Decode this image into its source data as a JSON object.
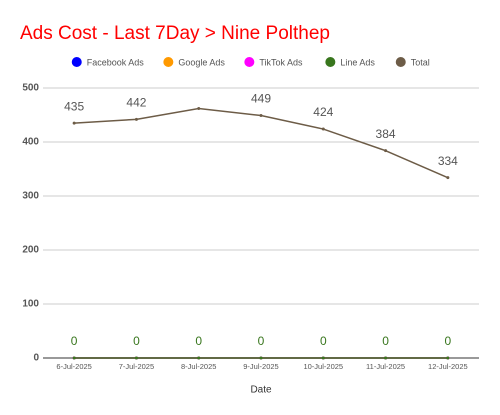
{
  "chart_data": {
    "type": "line",
    "title": "Ads Cost - Last 7Day > Nine Polthep",
    "x_label": "Date",
    "categories": [
      "6-Jul-2025",
      "7-Jul-2025",
      "8-Jul-2025",
      "9-Jul-2025",
      "10-Jul-2025",
      "11-Jul-2025",
      "12-Jul-2025"
    ],
    "series": [
      {
        "name": "Facebook Ads",
        "color": "#0000ff",
        "values": [
          0,
          0,
          0,
          0,
          0,
          0,
          0
        ]
      },
      {
        "name": "Google Ads",
        "color": "#ff9900",
        "values": [
          0,
          0,
          0,
          0,
          0,
          0,
          0
        ]
      },
      {
        "name": "TikTok Ads",
        "color": "#ff00ff",
        "values": [
          0,
          0,
          0,
          0,
          0,
          0,
          0
        ]
      },
      {
        "name": "Line Ads",
        "color": "#38761d",
        "values": [
          0,
          0,
          0,
          0,
          0,
          0,
          0
        ],
        "data_labels": true
      },
      {
        "name": "Total",
        "color": "#6d5c47",
        "values": [
          435,
          442,
          462,
          449,
          424,
          384,
          334
        ],
        "data_labels": true,
        "value_labels": [
          "435",
          "442",
          null,
          "449",
          "424",
          "384",
          "334"
        ]
      }
    ],
    "ylim": [
      0,
      500
    ],
    "yticks": [
      0,
      100,
      200,
      300,
      400,
      500
    ],
    "grid": true,
    "legend": "top"
  }
}
